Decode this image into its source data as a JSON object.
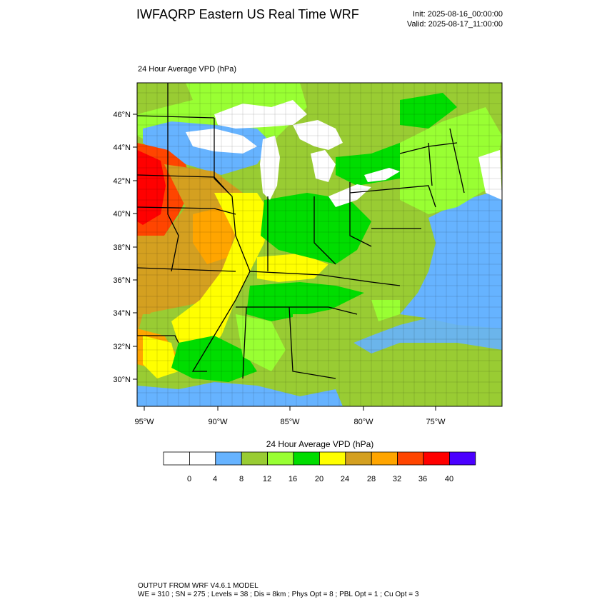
{
  "header": {
    "title": "IWFAQRP Eastern US Real Time WRF",
    "init": "Init: 2025-08-16_00:00:00",
    "valid": "Valid: 2025-08-17_11:00:00"
  },
  "map": {
    "field_label": "24 Hour Average VPD   (hPa)",
    "lat_ticks": [
      "46°N",
      "44°N",
      "42°N",
      "40°N",
      "38°N",
      "36°N",
      "34°N",
      "32°N",
      "30°N"
    ],
    "lon_ticks": [
      "95°W",
      "90°W",
      "85°W",
      "80°W",
      "75°W"
    ]
  },
  "colorbar": {
    "title": "24 Hour Average VPD  (hPa)",
    "colors": [
      "#ffffff",
      "#ffffff",
      "#66b3ff",
      "#99cc33",
      "#99ff33",
      "#00dd00",
      "#ffff00",
      "#d4a020",
      "#ffa500",
      "#ff4500",
      "#ff0000",
      "#4b00ff"
    ],
    "labels": [
      "0",
      "4",
      "8",
      "12",
      "16",
      "20",
      "24",
      "28",
      "32",
      "36",
      "40"
    ]
  },
  "footer": {
    "line1": "OUTPUT FROM WRF V4.6.1 MODEL",
    "line2": "WE = 310 ; SN = 275 ; Levels = 38 ; Dis = 8km ; Phys Opt = 8 ; PBL Opt = 1 ; Cu Opt = 3"
  }
}
